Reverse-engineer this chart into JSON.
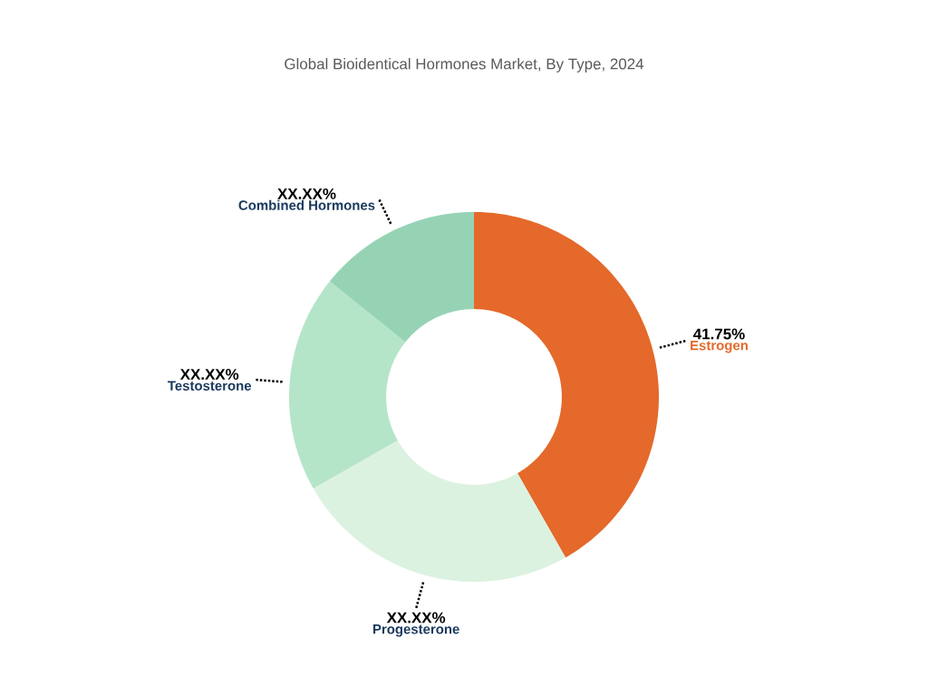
{
  "chart_data": {
    "type": "donut",
    "title": "Global Bioidentical Hormones Market, By Type, 2024",
    "categories": [
      "Estrogen",
      "Progesterone",
      "Testosterone",
      "Combined Hormones"
    ],
    "values": [
      41.75,
      25.0,
      19.0,
      14.25
    ],
    "value_labels": [
      "41.75%",
      "XX.XX%",
      "XX.XX%",
      "XX.XX%"
    ],
    "colors": [
      "#e4692a",
      "#dcf2e1",
      "#b5e5c9",
      "#96d3b5"
    ]
  }
}
